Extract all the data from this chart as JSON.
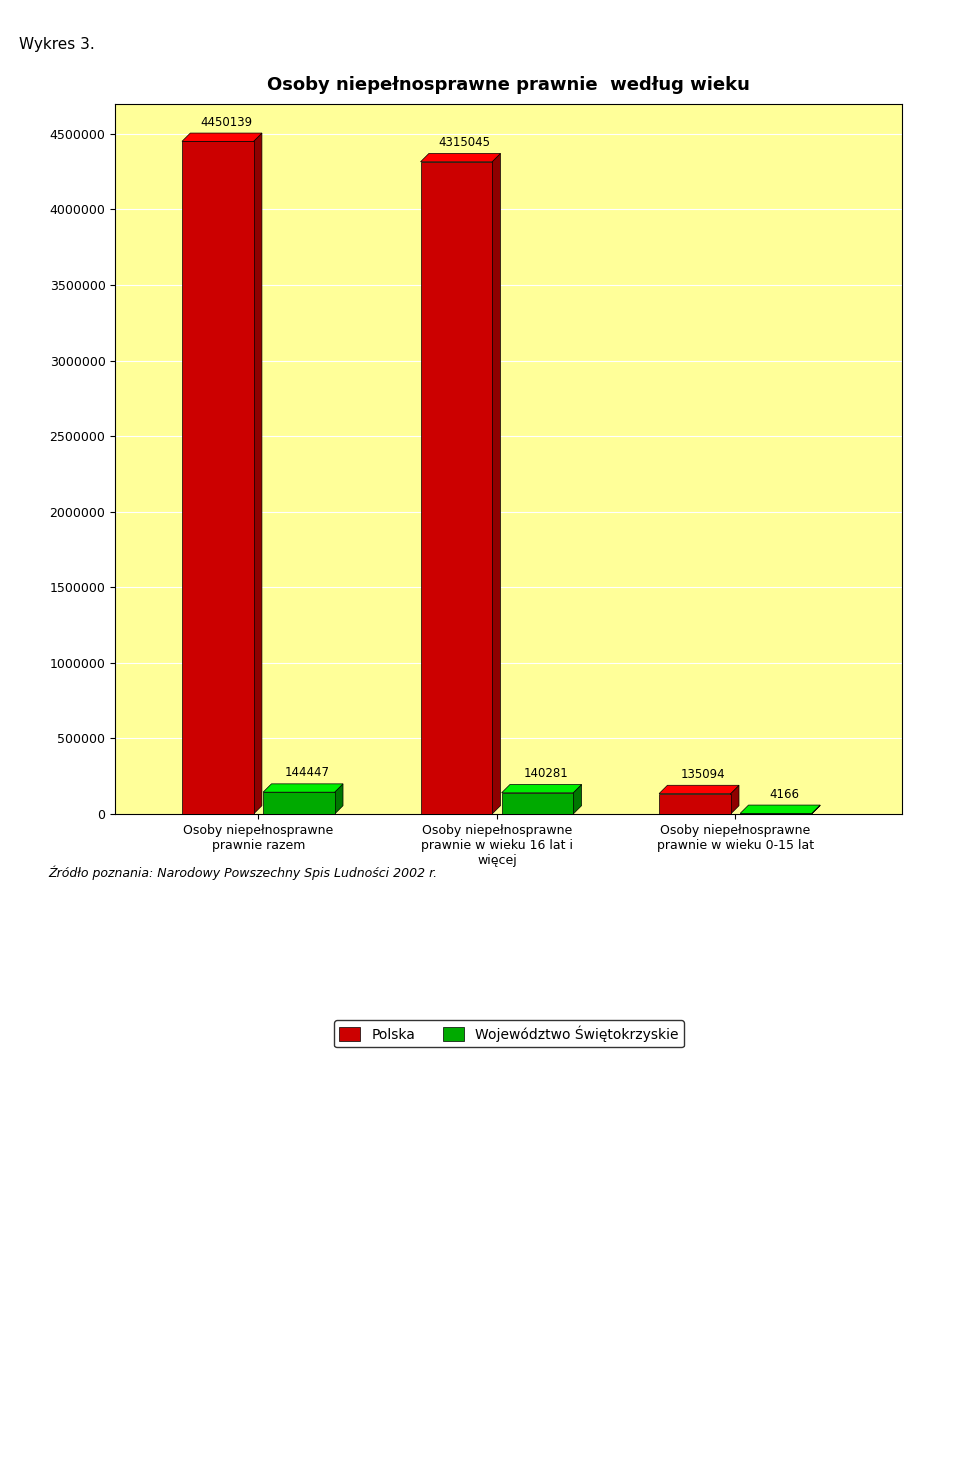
{
  "title": "Osoby niepełnosprawne prawnie  według wieku",
  "categories": [
    "Osoby niepełnosprawne\nprawnie razem",
    "Osoby niepełnosprawne\nprawnie w wieku 16 lat i\nwięcej",
    "Osoby niepełnosprawne\nprawnie w wieku 0-15 lat"
  ],
  "polska_values": [
    4450139,
    4315045,
    135094
  ],
  "wojew_values": [
    144447,
    140281,
    4166
  ],
  "polska_color": "#cc0000",
  "wojew_color": "#00aa00",
  "polska_label": "Polska",
  "wojew_label": "Województwo Świętokrzyskie",
  "ylim": [
    0,
    4700000
  ],
  "yticks": [
    0,
    500000,
    1000000,
    1500000,
    2000000,
    2500000,
    3000000,
    3500000,
    4000000,
    4500000
  ],
  "bg_color": "#ffff99",
  "plot_area_bg": "#ffff99",
  "outer_bg": "#ffffff",
  "bar_width": 0.3,
  "title_fontsize": 13,
  "tick_fontsize": 9,
  "label_fontsize": 9,
  "annot_fontsize": 8.5,
  "legend_fontsize": 10,
  "wykres_label": "Wykres 3.",
  "source_text": "Źródło poznania: Narodowy Powszechny Spis Ludności 2002 r."
}
